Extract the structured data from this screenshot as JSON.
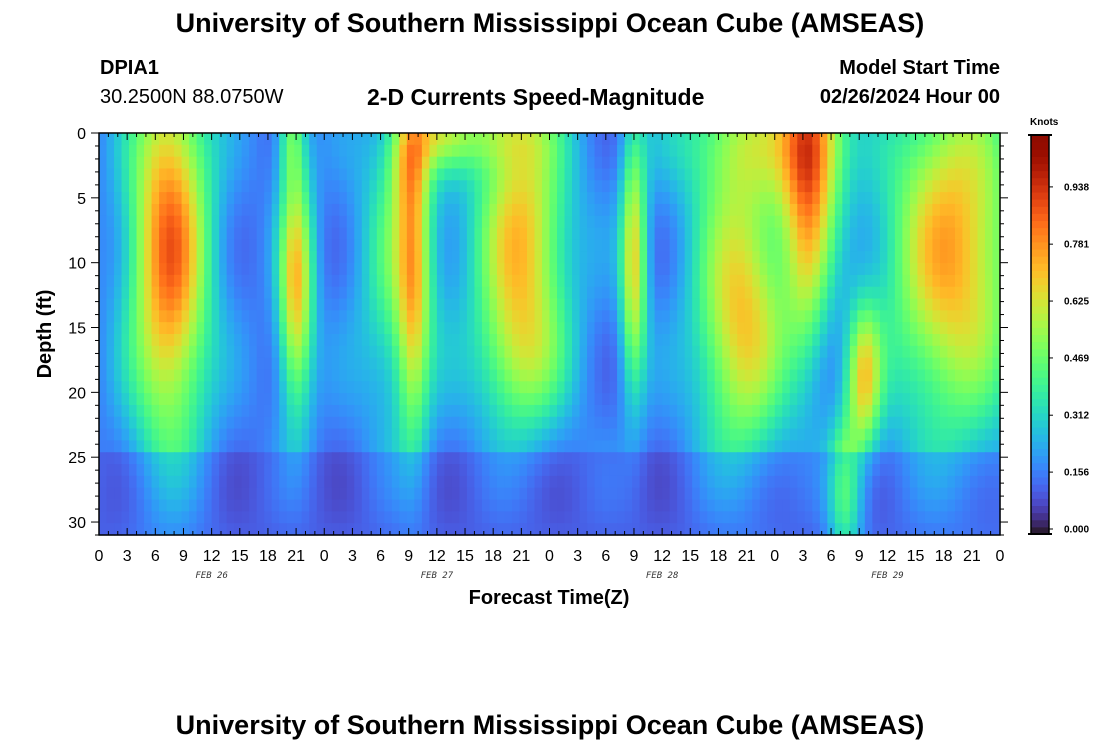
{
  "header": {
    "title": "University of Southern Mississippi Ocean Cube (AMSEAS)",
    "station_id": "DPIA1",
    "coordinates": "30.2500N  88.0750W",
    "chart_title": "2-D Currents Speed-Magnitude",
    "model_start_label": "Model Start Time",
    "model_start_value": "02/26/2024 Hour 00"
  },
  "footer": {
    "title": "University of Southern Mississippi Ocean Cube (AMSEAS)"
  },
  "chart_data": {
    "type": "heatmap",
    "title": "2-D Currents Speed-Magnitude",
    "xlabel": "Forecast Time(Z)",
    "ylabel": "Depth (ft)",
    "x_tick_labels": [
      "0",
      "3",
      "6",
      "9",
      "12",
      "15",
      "18",
      "21",
      "0",
      "3",
      "6",
      "9",
      "12",
      "15",
      "18",
      "21",
      "0",
      "3",
      "6",
      "9",
      "12",
      "15",
      "18",
      "21",
      "0",
      "3",
      "6",
      "9",
      "12",
      "15",
      "18",
      "21",
      "0"
    ],
    "x_range_hours": [
      0,
      96
    ],
    "y_ticks": [
      0,
      5,
      10,
      15,
      20,
      25,
      30
    ],
    "y_range": [
      0,
      31
    ],
    "y_inverted": true,
    "date_labels": [
      {
        "text": "FEB 26",
        "hour": 12
      },
      {
        "text": "FEB 27",
        "hour": 36
      },
      {
        "text": "FEB 28",
        "hour": 60
      },
      {
        "text": "FEB 29",
        "hour": 84
      }
    ],
    "colorbar": {
      "unit": "Knots",
      "ticks": [
        "0.000",
        "0.156",
        "0.312",
        "0.469",
        "0.625",
        "0.781",
        "0.938"
      ],
      "tick_values": [
        0.0,
        0.156,
        0.312,
        0.469,
        0.625,
        0.781,
        0.938
      ],
      "range": [
        0,
        1.094
      ],
      "colormap": "turbo"
    },
    "features": [
      {
        "t": 7.5,
        "d": 9,
        "st": 3.0,
        "sd": 11,
        "v": 0.7
      },
      {
        "t": 21,
        "d": 12,
        "st": 1.3,
        "sd": 7,
        "v": 0.55
      },
      {
        "t": 20.5,
        "d": 0,
        "st": 1.0,
        "sd": 3,
        "v": 0.25
      },
      {
        "t": 32,
        "d": 10,
        "st": 3.0,
        "sd": 9,
        "v": 0.3
      },
      {
        "t": 33,
        "d": 2,
        "st": 1.5,
        "sd": 3,
        "v": 0.25
      },
      {
        "t": 36,
        "d": 0,
        "st": 2.5,
        "sd": 2,
        "v": 0.25
      },
      {
        "t": 42,
        "d": 0,
        "st": 4.0,
        "sd": 2,
        "v": 0.2
      },
      {
        "t": 33.5,
        "d": 12,
        "st": 1.2,
        "sd": 9,
        "v": 0.35
      },
      {
        "t": 45,
        "d": 8,
        "st": 3.5,
        "sd": 8,
        "v": 0.55
      },
      {
        "t": 45,
        "d": 18,
        "st": 3.5,
        "sd": 4,
        "v": 0.2
      },
      {
        "t": 57,
        "d": 10,
        "st": 1.0,
        "sd": 7,
        "v": 0.5
      },
      {
        "t": 68.5,
        "d": 14,
        "st": 3.5,
        "sd": 8,
        "v": 0.55
      },
      {
        "t": 68,
        "d": 0,
        "st": 5.0,
        "sd": 4,
        "v": 0.3
      },
      {
        "t": 76,
        "d": 0,
        "st": 2.5,
        "sd": 5,
        "v": 0.55
      },
      {
        "t": 75.5,
        "d": 9,
        "st": 1.8,
        "sd": 7,
        "v": 0.35
      },
      {
        "t": 81.5,
        "d": 19,
        "st": 1.3,
        "sd": 4,
        "v": 0.45
      },
      {
        "t": 79.5,
        "d": 28,
        "st": 1.3,
        "sd": 4,
        "v": 0.4
      },
      {
        "t": 91,
        "d": 9,
        "st": 5.0,
        "sd": 10,
        "v": 0.6
      }
    ]
  }
}
